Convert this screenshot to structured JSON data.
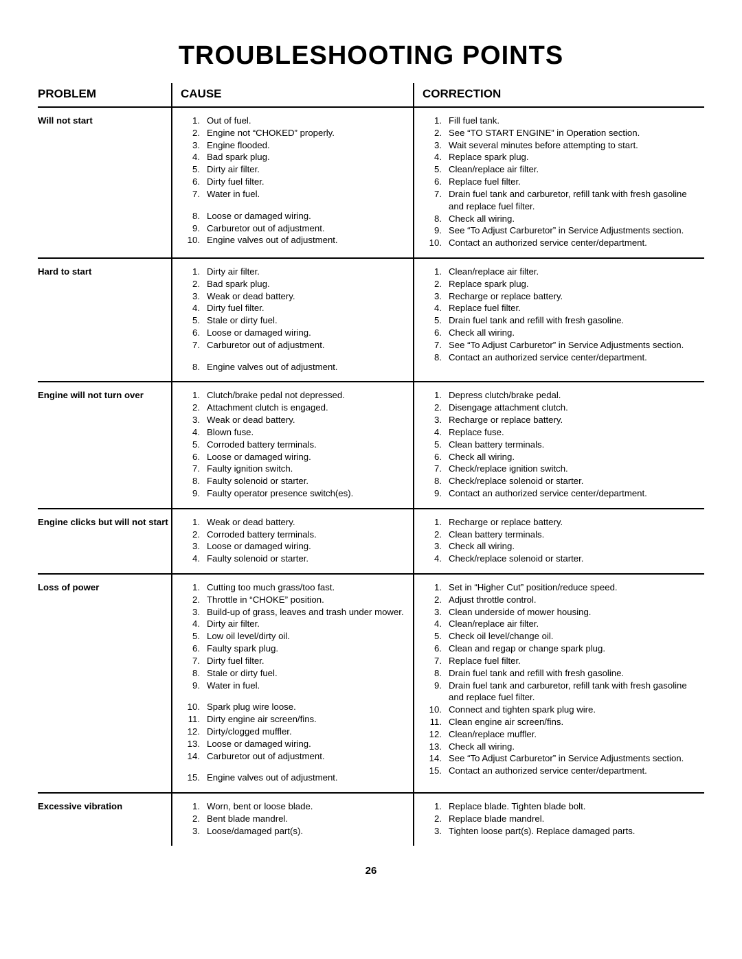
{
  "title": "TROUBLESHOOTING POINTS",
  "page_number": "26",
  "headers": {
    "problem": "PROBLEM",
    "cause": "CAUSE",
    "correction": "CORRECTION"
  },
  "rows": [
    {
      "problem": "Will not start",
      "causes": [
        "Out of fuel.",
        "Engine not “CHOKED” properly.",
        "Engine flooded.",
        "Bad spark plug.",
        "Dirty air filter.",
        "Dirty fuel filter.",
        "Water in fuel.",
        "Loose or damaged wiring.",
        "Carburetor out of adjustment.",
        "Engine valves out of adjustment."
      ],
      "cause_gaps": [
        7
      ],
      "corrections": [
        "Fill fuel tank.",
        "See “TO START ENGINE” in Operation section.",
        "Wait several minutes before attempting to start.",
        "Replace spark plug.",
        "Clean/replace air filter.",
        "Replace fuel filter.",
        "Drain fuel tank and carburetor, refill tank with fresh gasoline and replace fuel filter.",
        "Check all wiring.",
        "See “To Adjust Carburetor” in Service Adjustments section.",
        "Contact an authorized service center/department."
      ],
      "corr_gaps": []
    },
    {
      "problem": "Hard to start",
      "causes": [
        "Dirty air filter.",
        "Bad spark plug.",
        "Weak or dead battery.",
        "Dirty fuel filter.",
        "Stale or dirty fuel.",
        "Loose or damaged wiring.",
        "Carburetor out of adjustment.",
        "Engine valves out of adjustment."
      ],
      "cause_gaps": [
        7
      ],
      "corrections": [
        "Clean/replace air filter.",
        "Replace spark plug.",
        "Recharge or replace battery.",
        "Replace fuel filter.",
        "Drain fuel tank and refill with fresh gasoline.",
        "Check all wiring.",
        "See “To Adjust Carburetor” in Service Adjustments section.",
        "Contact an authorized service center/department."
      ],
      "corr_gaps": []
    },
    {
      "problem": "Engine will not turn over",
      "causes": [
        "Clutch/brake pedal not depressed.",
        "Attachment clutch is engaged.",
        "Weak or dead battery.",
        "Blown fuse.",
        "Corroded battery terminals.",
        "Loose or damaged wiring.",
        "Faulty ignition switch.",
        "Faulty solenoid or starter.",
        "Faulty operator presence switch(es)."
      ],
      "cause_gaps": [],
      "corrections": [
        "Depress clutch/brake pedal.",
        "Disengage attachment clutch.",
        "Recharge or replace battery.",
        "Replace fuse.",
        "Clean battery terminals.",
        "Check all wiring.",
        "Check/replace ignition switch.",
        "Check/replace solenoid or starter.",
        "Contact an authorized service center/department."
      ],
      "corr_gaps": []
    },
    {
      "problem": "Engine clicks but will not start",
      "causes": [
        "Weak or dead battery.",
        "Corroded battery terminals.",
        "Loose or damaged wiring.",
        "Faulty solenoid or starter."
      ],
      "cause_gaps": [],
      "corrections": [
        "Recharge or replace battery.",
        "Clean battery terminals.",
        "Check all wiring.",
        "Check/replace solenoid or starter."
      ],
      "corr_gaps": []
    },
    {
      "problem": "Loss of power",
      "causes": [
        "Cutting too much grass/too fast.",
        "Throttle in “CHOKE” position.",
        "Build-up of grass, leaves and trash under mower.",
        "Dirty air filter.",
        "Low oil level/dirty oil.",
        "Faulty spark plug.",
        "Dirty fuel filter.",
        "Stale or dirty fuel.",
        "Water in fuel.",
        "Spark plug wire loose.",
        "Dirty engine air screen/fins.",
        "Dirty/clogged muffler.",
        "Loose or damaged wiring.",
        "Carburetor out of adjustment.",
        "Engine valves out of adjustment."
      ],
      "cause_gaps": [
        9,
        14
      ],
      "corrections": [
        "Set in “Higher Cut” position/reduce speed.",
        "Adjust throttle control.",
        "Clean underside of mower housing.",
        "Clean/replace air filter.",
        "Check oil level/change oil.",
        "Clean and regap or change spark plug.",
        "Replace fuel filter.",
        "Drain fuel tank and refill with fresh gasoline.",
        "Drain fuel tank and carburetor, refill tank with fresh gasoline and replace fuel filter.",
        "Connect and tighten spark plug wire.",
        "Clean engine air screen/fins.",
        "Clean/replace muffler.",
        "Check all wiring.",
        "See “To Adjust Carburetor” in Service Adjustments section.",
        "Contact an authorized service center/department."
      ],
      "corr_gaps": []
    },
    {
      "problem": "Excessive vibration",
      "causes": [
        "Worn, bent or loose blade.",
        "Bent blade mandrel.",
        "Loose/damaged part(s)."
      ],
      "cause_gaps": [],
      "corrections": [
        "Replace blade.  Tighten blade bolt.",
        "Replace blade mandrel.",
        "Tighten loose part(s).  Replace damaged parts."
      ],
      "corr_gaps": []
    }
  ]
}
